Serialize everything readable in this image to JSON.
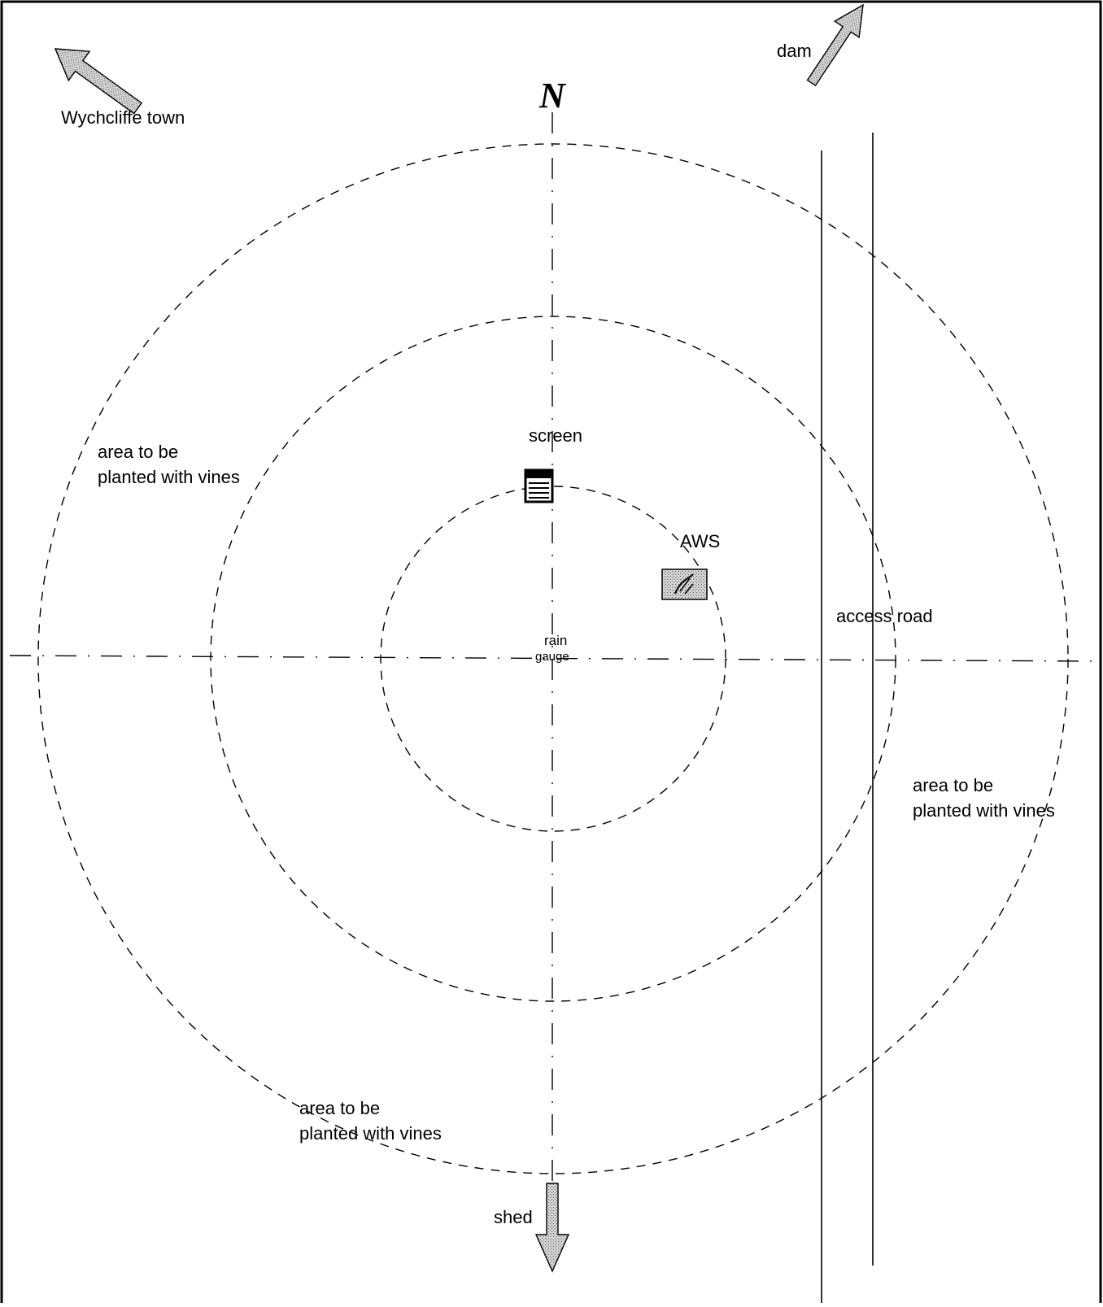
{
  "compass": {
    "north_label": "N"
  },
  "arrows": {
    "town": "Wychcliffe town",
    "dam": "dam",
    "shed": "shed"
  },
  "instruments": {
    "screen": "screen",
    "aws": "AWS",
    "rain_line1": "rain",
    "rain_line2": "gauge"
  },
  "road": {
    "label": "access road"
  },
  "areas": [
    {
      "line1": "area to be",
      "line2": "planted with vines"
    },
    {
      "line1": "area to be",
      "line2": "planted with vines"
    },
    {
      "line1": "area to be",
      "line2": "planted with vines"
    }
  ],
  "colors": {
    "stipple_fill": "#c8c8c8",
    "aws_fill": "#bdbdbd",
    "ink": "#000000"
  }
}
